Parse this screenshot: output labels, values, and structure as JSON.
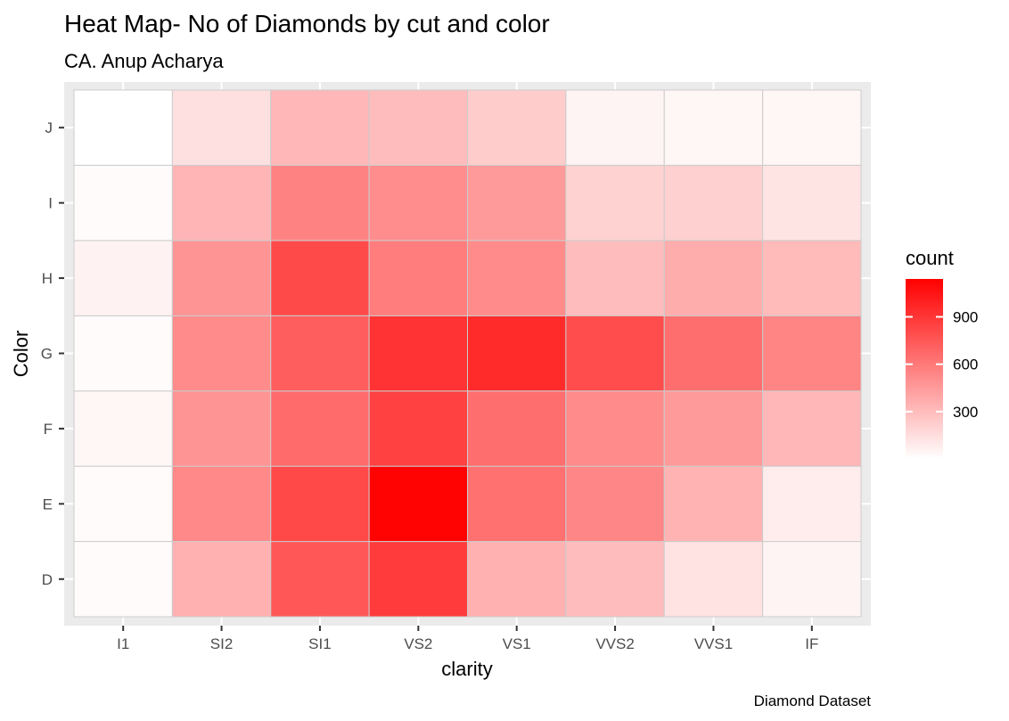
{
  "chart_data": {
    "type": "heatmap",
    "title": "Heat Map- No of Diamonds by cut and color",
    "subtitle": "CA. Anup Acharya",
    "caption": "Diamond Dataset",
    "xlabel": "clarity",
    "ylabel": "Color",
    "x_categories": [
      "I1",
      "SI2",
      "SI1",
      "VS2",
      "VS1",
      "VVS2",
      "VVS1",
      "IF"
    ],
    "y_categories": [
      "D",
      "E",
      "F",
      "G",
      "H",
      "I",
      "J"
    ],
    "values": [
      [
        20,
        350,
        750,
        875,
        350,
        300,
        130,
        50
      ],
      [
        20,
        530,
        820,
        1130,
        640,
        540,
        340,
        80
      ],
      [
        40,
        480,
        660,
        850,
        650,
        520,
        450,
        320
      ],
      [
        20,
        520,
        720,
        910,
        950,
        800,
        650,
        550
      ],
      [
        60,
        480,
        810,
        580,
        520,
        300,
        370,
        310
      ],
      [
        20,
        330,
        560,
        510,
        450,
        200,
        210,
        120
      ],
      [
        0,
        140,
        320,
        300,
        230,
        50,
        40,
        40
      ]
    ],
    "legend": {
      "title": "count",
      "breaks": [
        300,
        600,
        900
      ],
      "range": [
        0,
        1140
      ],
      "low_color": "#ffffff",
      "high_color": "#ff0000",
      "position": "right"
    },
    "panel_background": "#ebebeb",
    "grid": true
  }
}
